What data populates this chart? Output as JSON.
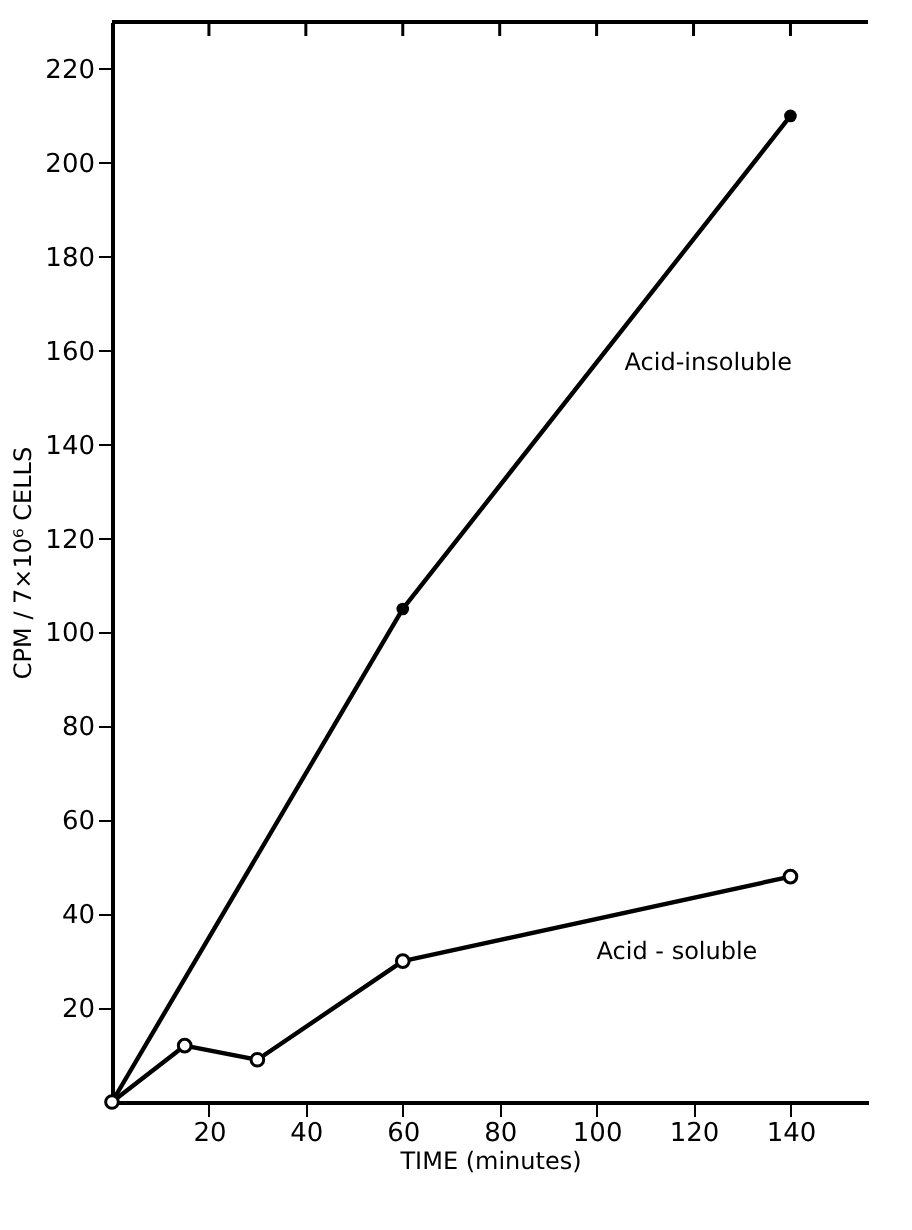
{
  "chart_data": {
    "type": "line",
    "xlabel": "TIME (minutes)",
    "ylabel": "CPM / 7×10⁶ CELLS",
    "xlim": [
      0,
      156
    ],
    "ylim": [
      0,
      230
    ],
    "xticks": [
      20,
      40,
      60,
      80,
      100,
      120,
      140
    ],
    "yticks": [
      20,
      40,
      60,
      80,
      100,
      120,
      140,
      160,
      180,
      200,
      220
    ],
    "grid": false,
    "marker": "circle",
    "line_style": "solid",
    "series": [
      {
        "name": "Acid-insoluble",
        "color": "#000000",
        "x": [
          0,
          60,
          140
        ],
        "values": [
          0,
          105,
          210
        ]
      },
      {
        "name": "Acid - soluble",
        "color": "#000000",
        "x": [
          0,
          15,
          30,
          60,
          140
        ],
        "values": [
          0,
          12,
          9,
          30,
          48
        ]
      }
    ]
  }
}
